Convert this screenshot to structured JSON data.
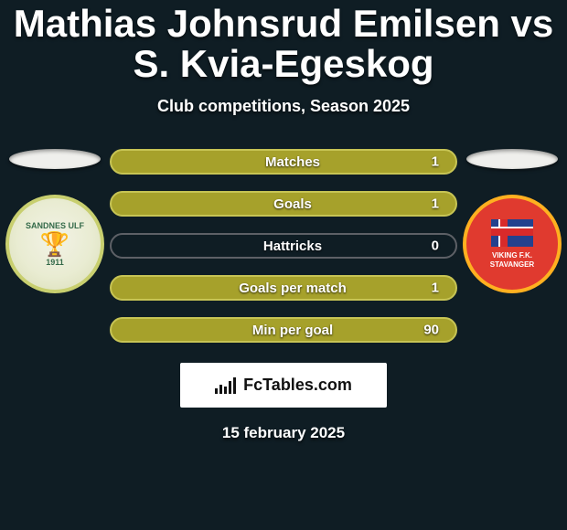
{
  "background_color": "#0f1d24",
  "text_color": "#ffffff",
  "title": "Mathias Johnsrud Emilsen vs S. Kvia-Egeskog",
  "title_fontsize": 42,
  "subtitle": "Club competitions, Season 2025",
  "subtitle_fontsize": 18,
  "left_badge": {
    "name_top": "SANDNES ULF",
    "name_bottom": "1911",
    "bg_color": "#e9ecd2",
    "border_color": "#c8cf6f",
    "text_color": "#346a49"
  },
  "right_badge": {
    "name_top": "VIKING F.K.",
    "name_bottom": "STAVANGER",
    "bg_color": "#e03a2f",
    "border_color": "#ffb020",
    "text_color": "#ffffff"
  },
  "oval_color": "#EFEFEC",
  "bar_style": {
    "height": 28,
    "border_radius": 14,
    "label_fontsize": 15,
    "value_fontsize": 15,
    "fill_color": "#a6a12b",
    "border_color": "#c7c454",
    "empty_border_color": "#5d6066"
  },
  "stats": [
    {
      "label": "Matches",
      "value": "1",
      "fill_pct": 100
    },
    {
      "label": "Goals",
      "value": "1",
      "fill_pct": 100
    },
    {
      "label": "Hattricks",
      "value": "0",
      "fill_pct": 0
    },
    {
      "label": "Goals per match",
      "value": "1",
      "fill_pct": 100
    },
    {
      "label": "Min per goal",
      "value": "90",
      "fill_pct": 100
    }
  ],
  "brand": "FcTables.com",
  "date": "15 february 2025"
}
